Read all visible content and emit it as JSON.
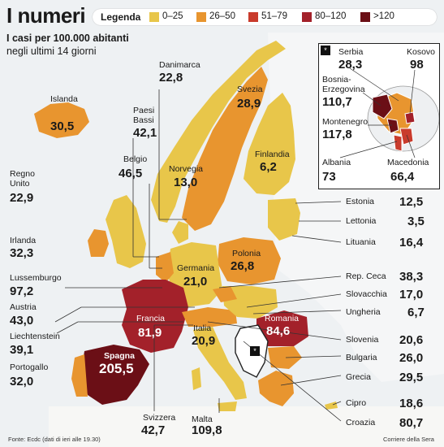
{
  "header": {
    "title": "I numeri",
    "subtitle_line1": "I casi per 100.000 abitanti",
    "subtitle_line2": "negli ultimi 14 giorni"
  },
  "legend": {
    "title": "Legenda",
    "items": [
      {
        "label": "0–25",
        "color": "#e8c64a"
      },
      {
        "label": "26–50",
        "color": "#e8952f"
      },
      {
        "label": "51–79",
        "color": "#c93b2c"
      },
      {
        "label": "80–120",
        "color": "#a3212a"
      },
      {
        "label": ">120",
        "color": "#6b0f16"
      }
    ]
  },
  "countries": {
    "islanda": {
      "name": "Islanda",
      "value": "30,5"
    },
    "danimarca": {
      "name": "Danimarca",
      "value": "22,8"
    },
    "svezia": {
      "name": "Svezia",
      "value": "28,9"
    },
    "paesi_bassi": {
      "name_line1": "Paesi",
      "name_line2": "Bassi",
      "value": "42,1"
    },
    "belgio": {
      "name": "Belgio",
      "value": "46,5"
    },
    "norvegia": {
      "name": "Norvegia",
      "value": "13,0"
    },
    "finlandia": {
      "name": "Finlandia",
      "value": "6,2"
    },
    "regno_unito": {
      "name_line1": "Regno",
      "name_line2": "Unito",
      "value": "22,9"
    },
    "irlanda": {
      "name": "Irlanda",
      "value": "32,3"
    },
    "lussemburgo": {
      "name": "Lussemburgo",
      "value": "97,2"
    },
    "austria": {
      "name": "Austria",
      "value": "43,0"
    },
    "liechtenstein": {
      "name": "Liechtenstein",
      "value": "39,1"
    },
    "portogallo": {
      "name": "Portogallo",
      "value": "32,0"
    },
    "spagna": {
      "name": "Spagna",
      "value": "205,5"
    },
    "francia": {
      "name": "Francia",
      "value": "81,9"
    },
    "germania": {
      "name": "Germania",
      "value": "21,0"
    },
    "polonia": {
      "name": "Polonia",
      "value": "26,8"
    },
    "italia": {
      "name": "Italia",
      "value": "20,9"
    },
    "romania": {
      "name": "Romania",
      "value": "84,6"
    },
    "svizzera": {
      "name": "Svizzera",
      "value": "42,7"
    },
    "malta": {
      "name": "Malta",
      "value": "109,8"
    },
    "estonia": {
      "name": "Estonia",
      "value": "12,5"
    },
    "lettonia": {
      "name": "Lettonia",
      "value": "3,5"
    },
    "lituania": {
      "name": "Lituania",
      "value": "16,4"
    },
    "rep_ceca": {
      "name": "Rep. Ceca",
      "value": "38,3"
    },
    "slovacchia": {
      "name": "Slovacchia",
      "value": "17,0"
    },
    "ungheria": {
      "name": "Ungheria",
      "value": "6,7"
    },
    "slovenia": {
      "name": "Slovenia",
      "value": "20,6"
    },
    "bulgaria": {
      "name": "Bulgaria",
      "value": "26,0"
    },
    "grecia": {
      "name": "Grecia",
      "value": "29,5"
    },
    "cipro": {
      "name": "Cipro",
      "value": "18,6"
    },
    "croazia": {
      "name": "Croazia",
      "value": "80,7"
    }
  },
  "inset": {
    "serbia": {
      "name": "Serbia",
      "value": "28,3"
    },
    "kosovo": {
      "name": "Kosovo",
      "value": "98"
    },
    "bosnia": {
      "name_line1": "Bosnia-",
      "name_line2": "Erzegovina",
      "value": "110,7"
    },
    "montenegro": {
      "name": "Montenegro",
      "value": "117,8"
    },
    "albania": {
      "name": "Albania",
      "value": "73"
    },
    "macedonia": {
      "name": "Macedonia",
      "value": "66,4"
    },
    "marker": "*"
  },
  "footer": {
    "source": "Fonte: Ecdc (dati di ieri alle 19.30)",
    "credit": "Corriere della Sera"
  }
}
